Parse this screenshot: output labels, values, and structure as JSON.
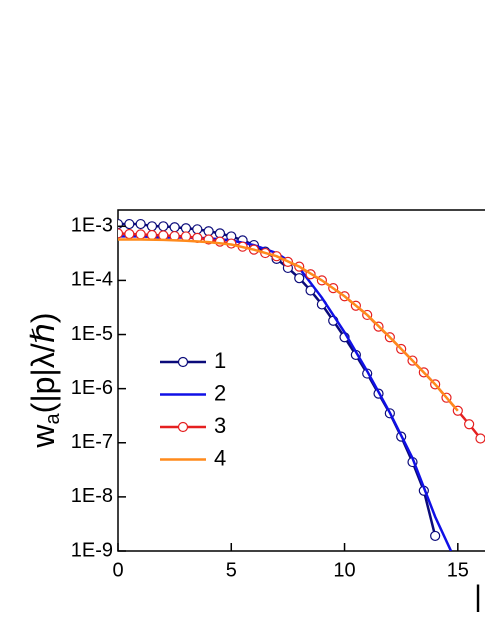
{
  "chart_data": {
    "type": "line",
    "ylabel": {
      "main": "w",
      "sub": "a",
      "rest": "(|p|λ/ℏ)"
    },
    "xlabel": "|",
    "log_y": true,
    "xlim": [
      0,
      16.2
    ],
    "ylim": [
      1e-09,
      0.002
    ],
    "xticks": [
      0,
      5,
      10,
      15
    ],
    "yticks": [
      {
        "value": 0.001,
        "label": "1E-3"
      },
      {
        "value": 0.0001,
        "label": "1E-4"
      },
      {
        "value": 1e-05,
        "label": "1E-5"
      },
      {
        "value": 1e-06,
        "label": "1E-6"
      },
      {
        "value": 1e-07,
        "label": "1E-7"
      },
      {
        "value": 1e-08,
        "label": "1E-8"
      },
      {
        "value": 1e-09,
        "label": "1E-9"
      }
    ],
    "series": [
      {
        "name": "1",
        "color": "#0b0b7a",
        "markers": true,
        "x": [
          0,
          0.5,
          1,
          1.5,
          2,
          2.5,
          3,
          3.5,
          4,
          4.5,
          5,
          5.5,
          6,
          6.5,
          7,
          7.5,
          8,
          8.5,
          9,
          9.5,
          10,
          10.5,
          11,
          11.5,
          12,
          12.5,
          13,
          13.5,
          14
        ],
        "values": [
          0.0011,
          0.0011,
          0.0011,
          0.001,
          0.001,
          0.00096,
          0.00092,
          0.00088,
          0.00081,
          0.00074,
          0.00065,
          0.00055,
          0.00045,
          0.00034,
          0.00025,
          0.00017,
          0.00011,
          6.5e-05,
          3.6e-05,
          1.8e-05,
          8.9e-06,
          4.2e-06,
          1.9e-06,
          8.1e-07,
          3.5e-07,
          1.3e-07,
          4.4e-08,
          1.3e-08,
          1.9e-09
        ]
      },
      {
        "name": "2",
        "color": "#1010e6",
        "markers": false,
        "x": [
          0,
          1,
          2,
          3,
          4,
          5,
          6,
          7,
          8,
          9,
          10,
          11,
          12,
          13,
          14,
          14.7
        ],
        "values": [
          0.00065,
          0.00065,
          0.00062,
          0.00062,
          0.0006,
          0.00055,
          0.00045,
          0.00032,
          0.00017,
          4.8e-05,
          1.1e-05,
          2.1e-06,
          3.6e-07,
          5.2e-08,
          4.3e-09,
          1e-09
        ]
      },
      {
        "name": "3",
        "color": "#e52020",
        "markers": true,
        "x": [
          0,
          0.5,
          1,
          1.5,
          2,
          2.5,
          3,
          3.5,
          4,
          4.5,
          5,
          5.5,
          6,
          6.5,
          7,
          7.5,
          8,
          8.5,
          9,
          9.5,
          10,
          10.5,
          11,
          11.5,
          12,
          12.5,
          13,
          13.5,
          14,
          14.5,
          15,
          15.5,
          16
        ],
        "values": [
          0.00074,
          0.00072,
          0.00071,
          0.00069,
          0.00068,
          0.00066,
          0.00065,
          0.00061,
          0.00057,
          0.00052,
          0.00048,
          0.00042,
          0.00037,
          0.00032,
          0.00028,
          0.00022,
          0.00018,
          0.00013,
          0.0001,
          7.2e-05,
          5.1e-05,
          3.4e-05,
          2.3e-05,
          1.4e-05,
          8.9e-06,
          5.4e-06,
          3.3e-06,
          2e-06,
          1.2e-06,
          6.8e-07,
          3.9e-07,
          2.2e-07,
          1.2e-07
        ]
      },
      {
        "name": "4",
        "color": "#ff8a1c",
        "markers": false,
        "x": [
          0,
          1,
          2,
          3,
          4,
          5,
          6,
          7,
          8,
          9,
          10,
          11,
          12,
          13,
          14,
          15
        ],
        "values": [
          0.00057,
          0.00057,
          0.00056,
          0.00054,
          0.00051,
          0.00046,
          0.00037,
          0.00028,
          0.00018,
          0.0001,
          5.1e-05,
          2.3e-05,
          8.9e-06,
          3.3e-06,
          1.2e-06,
          3.9e-07
        ]
      }
    ]
  }
}
